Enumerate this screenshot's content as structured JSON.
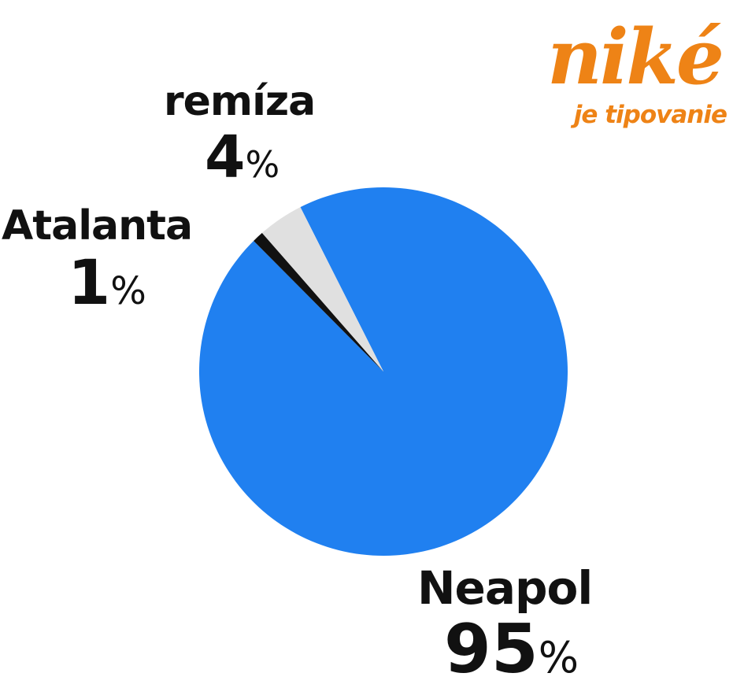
{
  "logo": {
    "brand": "niké",
    "tagline": "je tipovanie",
    "color": "#ee8316"
  },
  "chart_data": {
    "type": "pie",
    "title": "",
    "slices": [
      {
        "label": "Neapol",
        "value": 95,
        "display": "95",
        "unit": "%",
        "color": "#2080f0"
      },
      {
        "label": "Atalanta",
        "value": 1,
        "display": "1",
        "unit": "%",
        "color": "#111111"
      },
      {
        "label": "remíza",
        "value": 4,
        "display": "4",
        "unit": "%",
        "color": "#e0e0e0"
      }
    ],
    "start_angle_deg": -26.8,
    "direction": "clockwise"
  }
}
